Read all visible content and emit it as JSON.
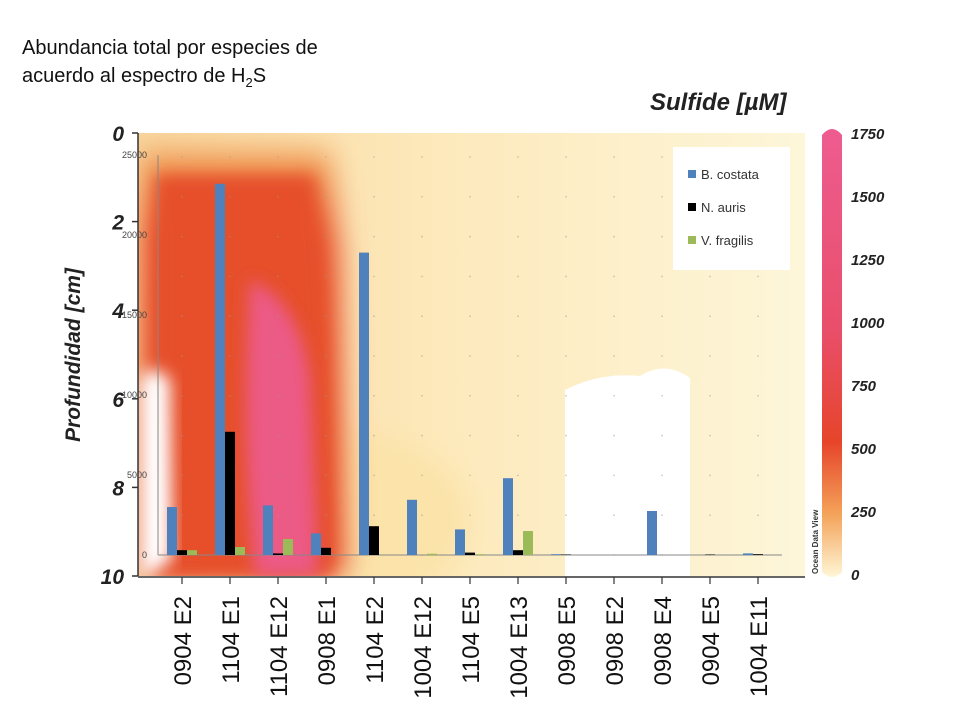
{
  "caption": {
    "line1": "Abundancia total por especies de",
    "line2_prefix": "acuerdo al espectro de H",
    "line2_sub": "2",
    "line2_suffix": "S"
  },
  "overlay_title": "Sulfide [µM]",
  "depth_axis": {
    "label": "Profundidad [cm]",
    "ticks": [
      "0",
      "2",
      "4",
      "6",
      "8",
      "10"
    ],
    "range": [
      0,
      10
    ]
  },
  "colorbar": {
    "ticks": [
      "1750",
      "1500",
      "1250",
      "1000",
      "750",
      "500",
      "250",
      "0"
    ],
    "range": [
      0,
      1750
    ],
    "watermark": "Ocean Data View",
    "colors": {
      "high": "#ea5a8a",
      "mid": "#e8532d",
      "low": "#fff8d8"
    }
  },
  "colors": {
    "b_costata": "#4f81bd",
    "n_auris": "#000000",
    "v_fragilis": "#9bbb59"
  },
  "chart_data": {
    "type": "bar",
    "categories": [
      "0904 E2",
      "1104 E1",
      "1104 E12",
      "0908 E1",
      "1104 E2",
      "1004 E12",
      "1104 E5",
      "1004 E13",
      "0908 E5",
      "0908 E2",
      "0908 E4",
      "0904 E5",
      "1004 E11"
    ],
    "series": [
      {
        "name": "B. costata",
        "values": [
          3000,
          23200,
          3100,
          1350,
          18900,
          3450,
          1600,
          4800,
          50,
          0,
          2750,
          0,
          100
        ]
      },
      {
        "name": "N. auris",
        "values": [
          300,
          7700,
          100,
          450,
          1800,
          0,
          150,
          300,
          30,
          0,
          0,
          30,
          50
        ]
      },
      {
        "name": "V. fragilis",
        "values": [
          300,
          500,
          1000,
          0,
          0,
          80,
          50,
          1500,
          0,
          0,
          0,
          0,
          0
        ]
      }
    ],
    "yticks": [
      "0",
      "5000",
      "10000",
      "15000",
      "20000",
      "25000"
    ],
    "ylim": [
      0,
      25000
    ],
    "legend": "top-right"
  }
}
